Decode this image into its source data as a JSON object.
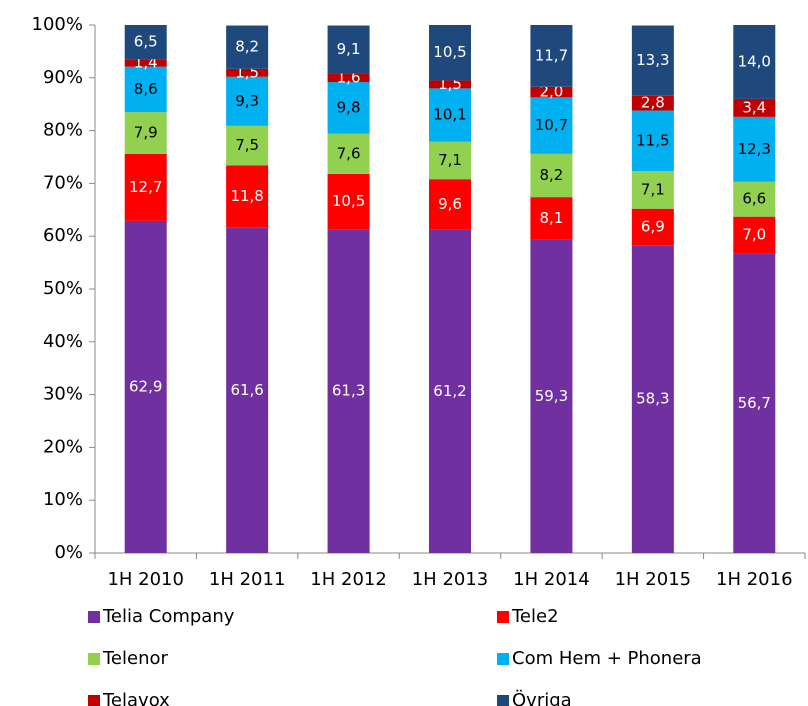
{
  "chart_data": {
    "type": "stacked_bar",
    "categories": [
      "1H 2010",
      "1H 2011",
      "1H 2012",
      "1H 2013",
      "1H 2014",
      "1H 2015",
      "1H 2016"
    ],
    "series": [
      {
        "name": "Telia Company",
        "color": "#7030a0",
        "values": [
          62.9,
          61.6,
          61.3,
          61.2,
          59.3,
          58.3,
          56.7
        ],
        "value_labels": [
          "62,9",
          "61,6",
          "61,3",
          "61,2",
          "59,3",
          "58,3",
          "56,7"
        ]
      },
      {
        "name": "Tele2",
        "color": "#ff0000",
        "values": [
          12.7,
          11.8,
          10.5,
          9.6,
          8.1,
          6.9,
          7.0
        ],
        "value_labels": [
          "12,7",
          "11,8",
          "10,5",
          "9,6",
          "8,1",
          "6,9",
          "7,0"
        ]
      },
      {
        "name": "Telenor",
        "color": "#92d050",
        "values": [
          7.9,
          7.5,
          7.6,
          7.1,
          8.2,
          7.1,
          6.6
        ],
        "value_labels": [
          "7,9",
          "7,5",
          "7,6",
          "7,1",
          "8,2",
          "7,1",
          "6,6"
        ]
      },
      {
        "name": "Com Hem + Phonera",
        "color": "#00b0f0",
        "values": [
          8.6,
          9.3,
          9.8,
          10.1,
          10.7,
          11.5,
          12.3
        ],
        "value_labels": [
          "8,6",
          "9,3",
          "9,8",
          "10,1",
          "10,7",
          "11,5",
          "12,3"
        ]
      },
      {
        "name": "Telavox",
        "color": "#c00000",
        "values": [
          1.4,
          1.5,
          1.6,
          1.5,
          2.0,
          2.8,
          3.4
        ],
        "value_labels": [
          "1,4",
          "1,5",
          "1,6",
          "1,5",
          "2,0",
          "2,8",
          "3,4"
        ]
      },
      {
        "name": "Övriga",
        "color": "#1f497d",
        "values": [
          6.5,
          8.2,
          9.1,
          10.5,
          11.7,
          13.3,
          14.0
        ],
        "value_labels": [
          "6,5",
          "8,2",
          "9,1",
          "10,5",
          "11,7",
          "13,3",
          "14,0"
        ]
      }
    ],
    "ylim": [
      0,
      100
    ],
    "yticks": [
      {
        "value": 0,
        "label": "0%"
      },
      {
        "value": 10,
        "label": "10%"
      },
      {
        "value": 20,
        "label": "20%"
      },
      {
        "value": 30,
        "label": "30%"
      },
      {
        "value": 40,
        "label": "40%"
      },
      {
        "value": 50,
        "label": "50%"
      },
      {
        "value": 60,
        "label": "60%"
      },
      {
        "value": 70,
        "label": "70%"
      },
      {
        "value": 80,
        "label": "80%"
      },
      {
        "value": 90,
        "label": "90%"
      },
      {
        "value": 100,
        "label": "100%"
      }
    ],
    "grid": false,
    "legend": "bottom"
  }
}
